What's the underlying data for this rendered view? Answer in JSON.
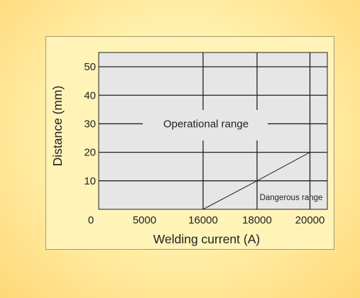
{
  "chart_data": {
    "type": "line",
    "categories": [
      "0",
      "5000",
      "16000",
      "18000",
      "20000"
    ],
    "x_ticks": [
      "0",
      "5000",
      "16000",
      "18000",
      "20000"
    ],
    "y_ticks": [
      "10",
      "20",
      "30",
      "40",
      "50"
    ],
    "xlabel": "Welding current (A)",
    "ylabel": "Distance (mm)",
    "ylim": [
      0,
      55
    ],
    "grid": true,
    "boundary": {
      "x": [
        "16000",
        "18000",
        "20000"
      ],
      "y": [
        0,
        10,
        20
      ]
    },
    "annotations": {
      "operational": "Operational range",
      "dangerous": "Dangerous range"
    },
    "colors": {
      "plot_bg": "#e6e6e6",
      "line": "#222222"
    }
  }
}
